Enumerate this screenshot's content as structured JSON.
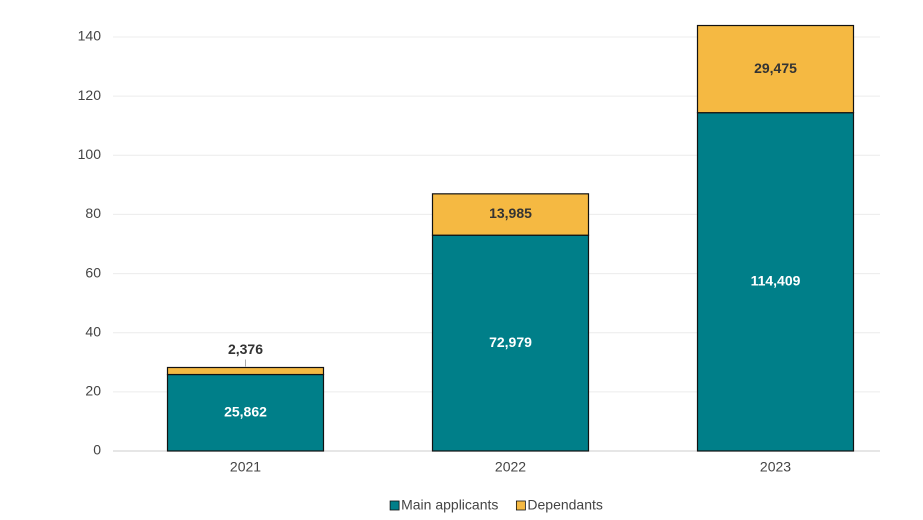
{
  "chart_data": {
    "type": "stacked_bar",
    "categories": [
      "2021",
      "2022",
      "2023"
    ],
    "series": [
      {
        "name": "Main applicants",
        "color": "#007f89",
        "values": [
          25.862,
          72.979,
          114.409
        ],
        "value_labels": [
          "25,862",
          "72,979",
          "114,409"
        ]
      },
      {
        "name": "Dependants",
        "color": "#f5b942",
        "values": [
          2.376,
          13.985,
          29.475
        ],
        "value_labels": [
          "2,376",
          "13,985",
          "29,475"
        ]
      }
    ],
    "ylim": [
      0,
      140
    ],
    "yticks": [
      0,
      20,
      40,
      60,
      80,
      100,
      120,
      140
    ],
    "grid": true,
    "legend": "bottom"
  }
}
